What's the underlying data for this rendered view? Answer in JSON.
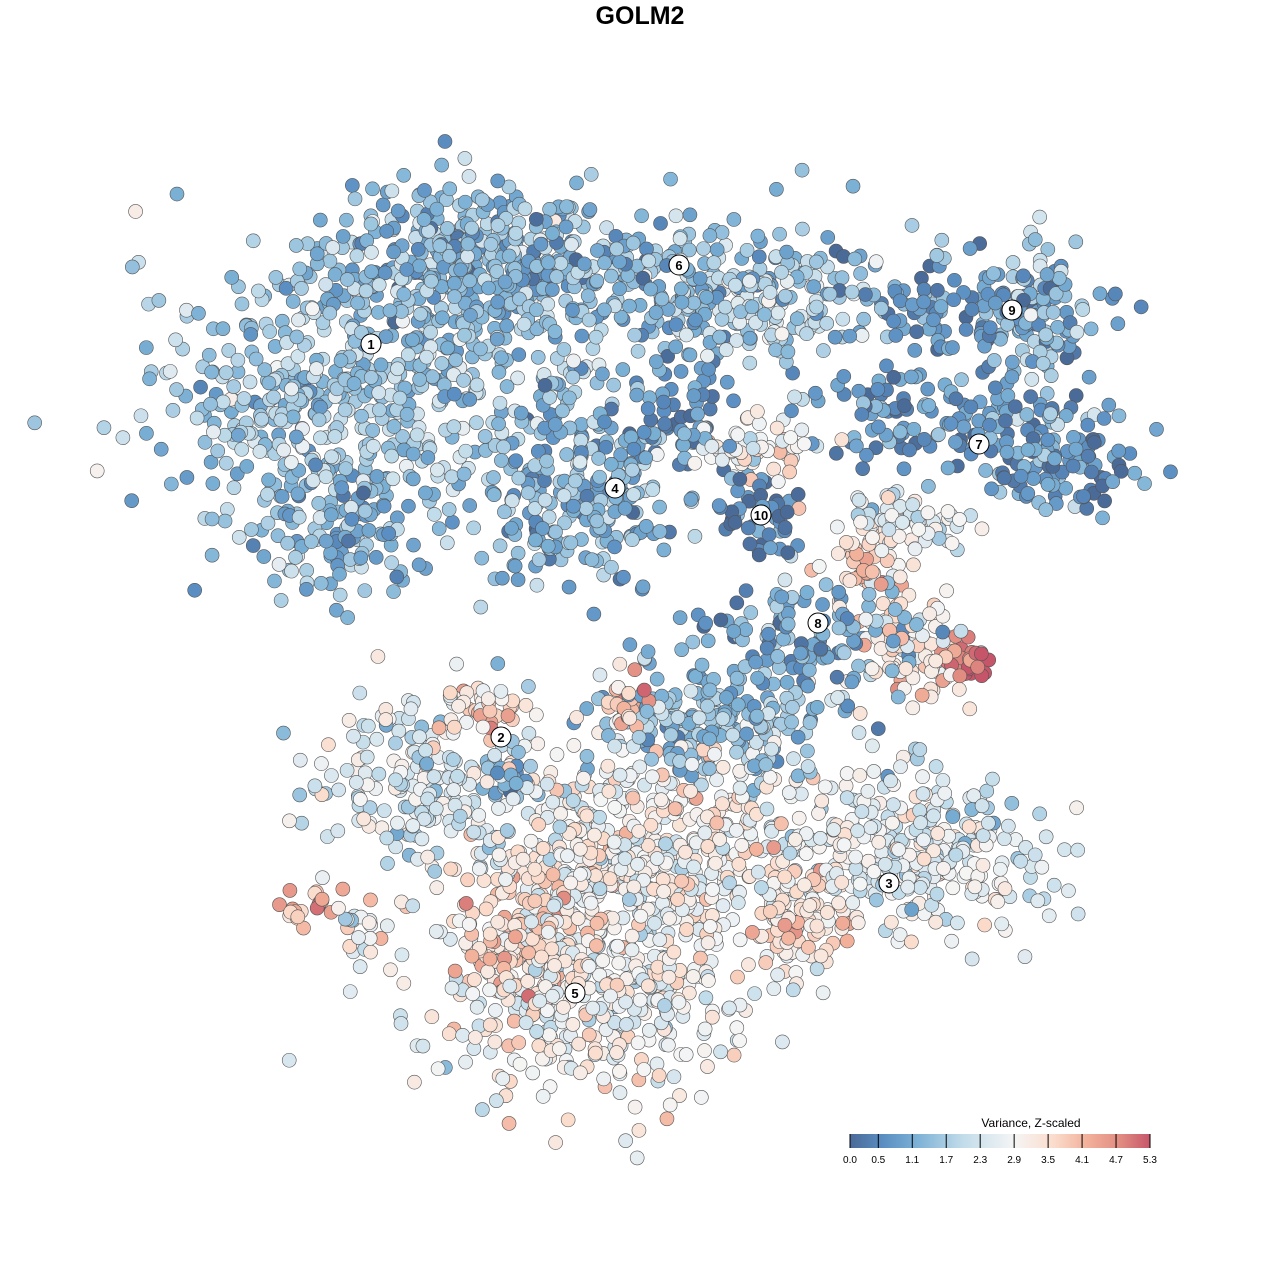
{
  "chart_data": {
    "type": "scatter",
    "title": "GOLM2",
    "xlabel": "",
    "ylabel": "",
    "xlim": [
      -64,
      64
    ],
    "ylim": [
      -64,
      64
    ],
    "grid": false,
    "note": "Embedding coordinates are arbitrary units; the point cloud is summarised as lobes (center, spread, point count, mean Z-scaled variance)",
    "colorbar": {
      "title": "Variance, Z-scaled",
      "placement": "bottom-right",
      "range": [
        0.0,
        5.3
      ],
      "ticks": [
        "0.0",
        "0.5",
        "1.1",
        "1.7",
        "2.3",
        "2.9",
        "3.5",
        "4.1",
        "4.7",
        "5.3"
      ],
      "tick_values": [
        0.0,
        0.5,
        1.1,
        1.7,
        2.3,
        2.9,
        3.5,
        4.1,
        4.7,
        5.3
      ],
      "colors": [
        {
          "v": 0.0,
          "c": "#4a6a98"
        },
        {
          "v": 0.6,
          "c": "#5b8fc3"
        },
        {
          "v": 1.2,
          "c": "#7db2d6"
        },
        {
          "v": 2.0,
          "c": "#c2dcea"
        },
        {
          "v": 2.9,
          "c": "#f5f5f5"
        },
        {
          "v": 3.6,
          "c": "#fbdccc"
        },
        {
          "v": 4.2,
          "c": "#f2b09a"
        },
        {
          "v": 4.8,
          "c": "#e08a80"
        },
        {
          "v": 5.3,
          "c": "#c6556a"
        }
      ]
    },
    "clusters": [
      {
        "label": "1",
        "label_pos": [
          -26.9,
          29.6
        ],
        "lobes": [
          {
            "c": [
              -27,
              26
            ],
            "s": [
              14,
              11
            ],
            "n": 520,
            "v": 1.6
          },
          {
            "c": [
              -16,
              38
            ],
            "s": [
              10,
              5
            ],
            "n": 260,
            "v": 1.2
          },
          {
            "c": [
              -30,
              12
            ],
            "s": [
              6,
              5
            ],
            "n": 120,
            "v": 1.3
          },
          {
            "c": [
              -38,
              22
            ],
            "s": [
              4,
              6
            ],
            "n": 60,
            "v": 1.8
          }
        ]
      },
      {
        "label": "6",
        "label_pos": [
          3.9,
          37.5
        ],
        "lobes": [
          {
            "c": [
              -2,
              36
            ],
            "s": [
              18,
              5
            ],
            "n": 330,
            "v": 1.3
          },
          {
            "c": [
              12,
              33
            ],
            "s": [
              7,
              3.5
            ],
            "n": 120,
            "v": 2.0
          }
        ]
      },
      {
        "label": "9",
        "label_pos": [
          37.2,
          33.0
        ],
        "lobes": [
          {
            "c": [
              33,
              33
            ],
            "s": [
              8,
              3
            ],
            "n": 110,
            "v": 0.8
          },
          {
            "c": [
              40,
              33
            ],
            "s": [
              3,
              5
            ],
            "n": 70,
            "v": 1.4
          }
        ]
      },
      {
        "label": "7",
        "label_pos": [
          33.9,
          19.6
        ],
        "lobes": [
          {
            "c": [
              32,
              22
            ],
            "s": [
              11,
              3.5
            ],
            "n": 150,
            "v": 0.8
          },
          {
            "c": [
              42,
              17
            ],
            "s": [
              5,
              2.5
            ],
            "n": 90,
            "v": 0.7
          }
        ]
      },
      {
        "label": "4",
        "label_pos": [
          -2.5,
          15.2
        ],
        "lobes": [
          {
            "c": [
              -6,
              15
            ],
            "s": [
              6.5,
              6
            ],
            "n": 230,
            "v": 1.2
          },
          {
            "c": [
              5,
              23
            ],
            "s": [
              3,
              4
            ],
            "n": 50,
            "v": 0.6
          }
        ]
      },
      {
        "label": "10",
        "label_pos": [
          12.1,
          12.5
        ],
        "lobes": [
          {
            "c": [
              12,
              12.5
            ],
            "s": [
              2.5,
              3
            ],
            "n": 50,
            "v": 0.4
          }
        ]
      },
      {
        "label": "",
        "label_pos": null,
        "lobes": [
          {
            "c": [
              11,
              19.5
            ],
            "s": [
              5,
              1.8
            ],
            "n": 60,
            "v": 3.2
          }
        ]
      },
      {
        "label": "8",
        "label_pos": [
          17.8,
          1.7
        ],
        "lobes": [
          {
            "c": [
              16,
              1
            ],
            "s": [
              8,
              3.5
            ],
            "n": 120,
            "v": 1.0
          },
          {
            "c": [
              23,
              7
            ],
            "s": [
              2.5,
              3.5
            ],
            "n": 50,
            "v": 3.6
          },
          {
            "c": [
              26,
              12
            ],
            "s": [
              5,
              2.2
            ],
            "n": 60,
            "v": 2.6
          },
          {
            "c": [
              27,
              -1
            ],
            "s": [
              4,
              3.5
            ],
            "n": 80,
            "v": 3.2
          },
          {
            "c": [
              32.5,
              -2
            ],
            "s": [
              1.6,
              1.6
            ],
            "n": 30,
            "v": 5.1
          }
        ]
      },
      {
        "label": "2",
        "label_pos": [
          -13.9,
          -9.7
        ],
        "lobes": [
          {
            "c": [
              -22,
              -15
            ],
            "s": [
              8,
              6
            ],
            "n": 200,
            "v": 2.4
          },
          {
            "c": [
              -16,
              -7
            ],
            "s": [
              3.5,
              1.8
            ],
            "n": 40,
            "v": 3.6
          },
          {
            "c": [
              -33,
              -26.5
            ],
            "s": [
              2,
              1.3
            ],
            "n": 20,
            "v": 4.3
          },
          {
            "c": [
              -27,
              -29
            ],
            "s": [
              2.5,
              1.7
            ],
            "n": 25,
            "v": 2.6
          },
          {
            "c": [
              -13,
              -13
            ],
            "s": [
              2,
              2
            ],
            "n": 25,
            "v": 0.8
          }
        ]
      },
      {
        "label": "3",
        "label_pos": [
          24.9,
          -24.3
        ],
        "lobes": [
          {
            "c": [
              28,
              -21
            ],
            "s": [
              9,
              5
            ],
            "n": 330,
            "v": 2.5
          },
          {
            "c": [
              16,
              -28
            ],
            "s": [
              3.5,
              4.5
            ],
            "n": 100,
            "v": 3.4
          }
        ]
      },
      {
        "label": "5",
        "label_pos": [
          -6.5,
          -35.3
        ],
        "lobes": [
          {
            "c": [
              -4,
              -35
            ],
            "s": [
              11,
              7
            ],
            "n": 460,
            "v": 2.9
          },
          {
            "c": [
              -12,
              -29
            ],
            "s": [
              4,
              5
            ],
            "n": 140,
            "v": 3.6
          },
          {
            "c": [
              1,
              -20
            ],
            "s": [
              10,
              6.5
            ],
            "n": 430,
            "v": 3.0
          },
          {
            "c": [
              8,
              -8
            ],
            "s": [
              8,
              4
            ],
            "n": 220,
            "v": 1.5
          },
          {
            "c": [
              -1,
              -6
            ],
            "s": [
              2,
              2
            ],
            "n": 30,
            "v": 3.8
          }
        ]
      }
    ]
  }
}
